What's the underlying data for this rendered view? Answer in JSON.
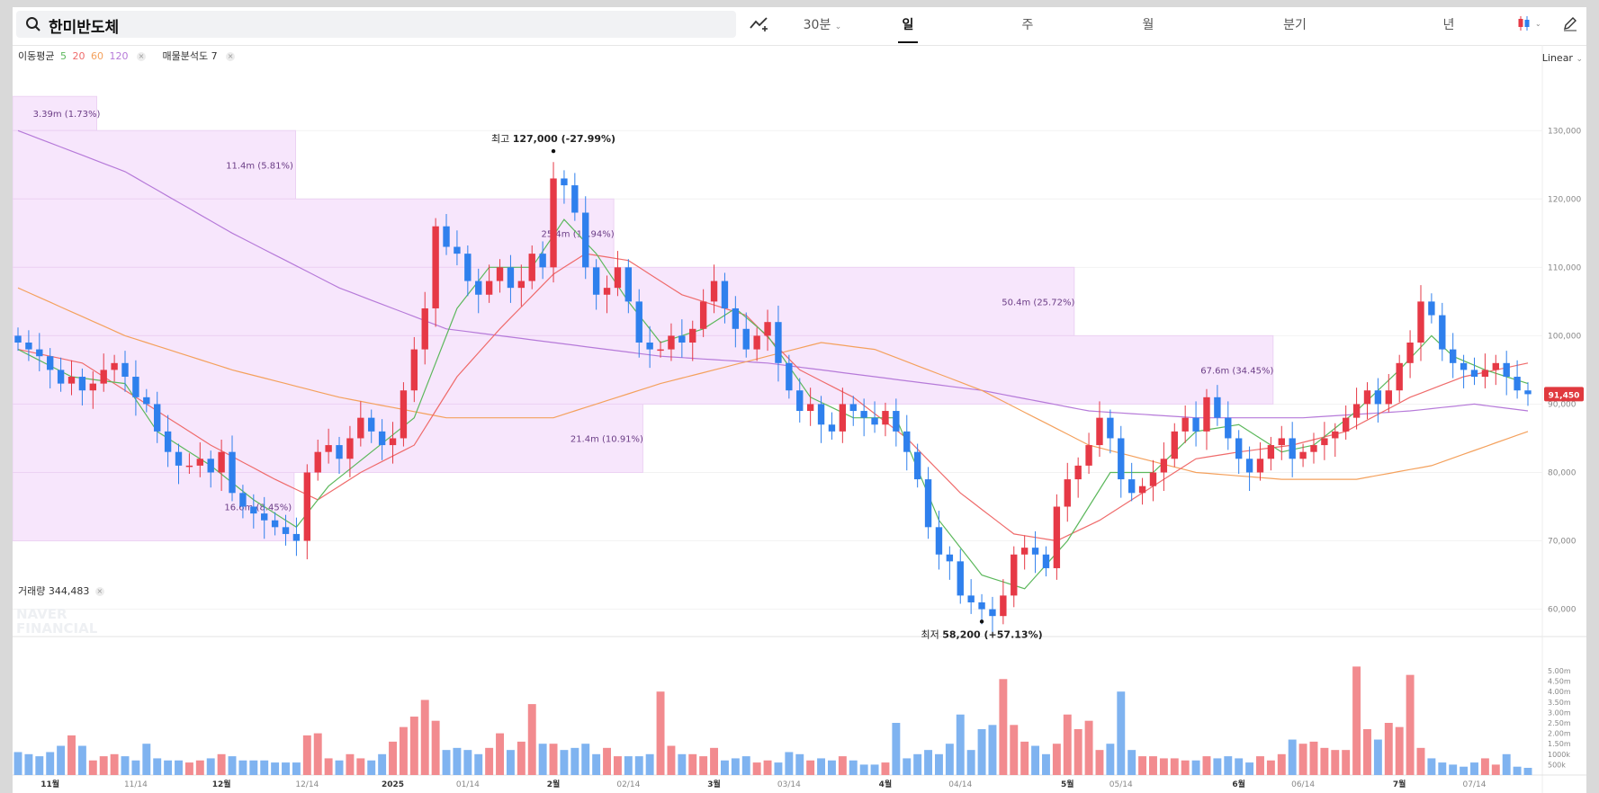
{
  "search": {
    "query": "한미반도체"
  },
  "toolbar": {
    "interval_30": "30분",
    "tabs": [
      "일",
      "주",
      "월",
      "분기",
      "년"
    ],
    "active_tab": "일"
  },
  "legend": {
    "ma_label": "이동평균",
    "ma_periods": [
      "5",
      "20",
      "60",
      "120"
    ],
    "vp_label": "매물분석도 7"
  },
  "scale_mode": "Linear",
  "volume_legend": "거래량 344,483",
  "watermark": [
    "NAVER",
    "FINANCIAL"
  ],
  "colors": {
    "up": "#e63946",
    "down": "#2f80ed",
    "ma5": "#5cb85c",
    "ma20": "#ef6b6b",
    "ma60": "#f4a15d",
    "ma120": "#b67ad9",
    "vp_fill": "#f7e6fc",
    "price_tag": "#e0393e"
  },
  "chart_data": {
    "type": "candlestick",
    "y_ticks": [
      "130,000",
      "120,000",
      "110,000",
      "100,000",
      "90,000",
      "80,000",
      "70,000",
      "60,000"
    ],
    "y_tick_values": [
      130000,
      120000,
      110000,
      100000,
      90000,
      80000,
      70000,
      60000
    ],
    "ylim": [
      56000,
      142000
    ],
    "x_ticks": [
      {
        "label": "11월",
        "i": 3
      },
      {
        "label": "11/14",
        "i": 11
      },
      {
        "label": "12월",
        "i": 19
      },
      {
        "label": "12/14",
        "i": 27
      },
      {
        "label": "2025",
        "i": 35
      },
      {
        "label": "01/14",
        "i": 42
      },
      {
        "label": "2월",
        "i": 50
      },
      {
        "label": "02/14",
        "i": 57
      },
      {
        "label": "3월",
        "i": 65
      },
      {
        "label": "03/14",
        "i": 72
      },
      {
        "label": "4월",
        "i": 81
      },
      {
        "label": "04/14",
        "i": 88
      },
      {
        "label": "5월",
        "i": 98
      },
      {
        "label": "05/14",
        "i": 103
      },
      {
        "label": "6월",
        "i": 114
      },
      {
        "label": "06/14",
        "i": 120
      },
      {
        "label": "7월",
        "i": 129
      },
      {
        "label": "07/14",
        "i": 136
      }
    ],
    "close": [
      99000,
      98000,
      97000,
      95000,
      93000,
      94000,
      92000,
      93000,
      95000,
      96000,
      94000,
      91000,
      90000,
      86000,
      83000,
      81000,
      81000,
      82000,
      80000,
      83000,
      77000,
      75000,
      74000,
      73000,
      72000,
      71000,
      70000,
      80000,
      83000,
      84000,
      82000,
      85000,
      88000,
      86000,
      84000,
      85000,
      92000,
      98000,
      104000,
      116000,
      113000,
      112000,
      108000,
      106000,
      108000,
      110000,
      107000,
      108000,
      112000,
      110000,
      123000,
      122000,
      118000,
      110000,
      106000,
      107000,
      110000,
      105000,
      99000,
      98000,
      98000,
      100000,
      99000,
      101000,
      105000,
      108000,
      104000,
      101000,
      98000,
      100000,
      102000,
      96000,
      92000,
      89000,
      90000,
      87000,
      86000,
      90000,
      89000,
      88000,
      87000,
      89000,
      86000,
      83000,
      79000,
      72000,
      68000,
      67000,
      62000,
      61000,
      60000,
      59000,
      62000,
      68000,
      69000,
      68000,
      66000,
      75000,
      79000,
      81000,
      84000,
      88000,
      85000,
      79000,
      77000,
      78000,
      80000,
      82000,
      86000,
      88000,
      86000,
      91000,
      88000,
      85000,
      82000,
      80000,
      82000,
      84000,
      85000,
      82000,
      83000,
      84000,
      85000,
      86000,
      88000,
      90000,
      92000,
      90000,
      92000,
      96000,
      99000,
      105000,
      103000,
      98000,
      96000,
      95000,
      94000,
      95000,
      96000,
      94000,
      92000,
      91450
    ],
    "n": 142,
    "ma5_anchor": [
      [
        0,
        98000
      ],
      [
        5,
        94000
      ],
      [
        10,
        93000
      ],
      [
        13,
        86000
      ],
      [
        18,
        81000
      ],
      [
        22,
        76000
      ],
      [
        26,
        72000
      ],
      [
        29,
        78000
      ],
      [
        33,
        83000
      ],
      [
        37,
        88000
      ],
      [
        41,
        104000
      ],
      [
        44,
        110000
      ],
      [
        48,
        110000
      ],
      [
        51,
        117000
      ],
      [
        54,
        112000
      ],
      [
        57,
        105000
      ],
      [
        60,
        99000
      ],
      [
        64,
        101000
      ],
      [
        67,
        104000
      ],
      [
        70,
        100000
      ],
      [
        74,
        91000
      ],
      [
        78,
        88000
      ],
      [
        82,
        88000
      ],
      [
        86,
        73000
      ],
      [
        90,
        65000
      ],
      [
        94,
        63000
      ],
      [
        98,
        70000
      ],
      [
        102,
        80000
      ],
      [
        106,
        80000
      ],
      [
        110,
        86000
      ],
      [
        114,
        87000
      ],
      [
        118,
        83000
      ],
      [
        121,
        84000
      ],
      [
        125,
        89000
      ],
      [
        129,
        95000
      ],
      [
        132,
        100000
      ],
      [
        134,
        97000
      ],
      [
        137,
        95000
      ],
      [
        141,
        93000
      ]
    ],
    "ma20_anchor": [
      [
        0,
        98000
      ],
      [
        6,
        96000
      ],
      [
        12,
        90000
      ],
      [
        18,
        84000
      ],
      [
        24,
        79000
      ],
      [
        28,
        76000
      ],
      [
        32,
        80000
      ],
      [
        37,
        84000
      ],
      [
        41,
        94000
      ],
      [
        45,
        101000
      ],
      [
        50,
        109000
      ],
      [
        53,
        112000
      ],
      [
        57,
        111000
      ],
      [
        62,
        106000
      ],
      [
        68,
        103000
      ],
      [
        73,
        95000
      ],
      [
        78,
        91000
      ],
      [
        83,
        85000
      ],
      [
        88,
        77000
      ],
      [
        93,
        71000
      ],
      [
        97,
        70000
      ],
      [
        101,
        73000
      ],
      [
        106,
        78000
      ],
      [
        110,
        82000
      ],
      [
        114,
        83000
      ],
      [
        119,
        84000
      ],
      [
        124,
        86000
      ],
      [
        130,
        91000
      ],
      [
        135,
        94000
      ],
      [
        141,
        96000
      ]
    ],
    "ma60_anchor": [
      [
        0,
        107000
      ],
      [
        10,
        100000
      ],
      [
        20,
        95000
      ],
      [
        30,
        91000
      ],
      [
        40,
        88000
      ],
      [
        50,
        88000
      ],
      [
        60,
        93000
      ],
      [
        70,
        97000
      ],
      [
        75,
        99000
      ],
      [
        80,
        98000
      ],
      [
        90,
        92000
      ],
      [
        100,
        84000
      ],
      [
        110,
        80000
      ],
      [
        118,
        79000
      ],
      [
        125,
        79000
      ],
      [
        132,
        81000
      ],
      [
        141,
        86000
      ]
    ],
    "ma120_anchor": [
      [
        0,
        130000
      ],
      [
        10,
        124000
      ],
      [
        20,
        115000
      ],
      [
        30,
        107000
      ],
      [
        40,
        101000
      ],
      [
        50,
        99000
      ],
      [
        60,
        97000
      ],
      [
        70,
        96000
      ],
      [
        80,
        94000
      ],
      [
        90,
        92000
      ],
      [
        100,
        89000
      ],
      [
        110,
        88000
      ],
      [
        120,
        88000
      ],
      [
        130,
        89000
      ],
      [
        136,
        90000
      ],
      [
        141,
        89000
      ]
    ],
    "volume_profile": [
      {
        "lo": 130000,
        "hi": 135000,
        "label": "3.39m (1.73%)",
        "width": 0.055
      },
      {
        "lo": 120000,
        "hi": 130000,
        "label": "11.4m (5.81%)",
        "width": 0.185
      },
      {
        "lo": 110000,
        "hi": 120000,
        "label": "25.4m (12.94%)",
        "width": 0.393
      },
      {
        "lo": 100000,
        "hi": 110000,
        "label": "50.4m (25.72%)",
        "width": 0.694
      },
      {
        "lo": 90000,
        "hi": 100000,
        "label": "67.6m (34.45%)",
        "width": 0.824
      },
      {
        "lo": 80000,
        "hi": 90000,
        "label": "21.4m (10.91%)",
        "width": 0.412
      },
      {
        "lo": 70000,
        "hi": 80000,
        "label": "16.6m (8.45%)",
        "width": 0.184
      }
    ],
    "high_annotation": {
      "prefix": "최고",
      "value": "127,000 (-27.99%)",
      "i": 50,
      "price": 127000
    },
    "low_annotation": {
      "prefix": "최저",
      "value": "58,200 (+57.13%)",
      "i": 90,
      "price": 58200
    },
    "last_price_tag": "91,450",
    "volume_ticks": [
      "5.00m",
      "4.50m",
      "4.00m",
      "3.50m",
      "3.00m",
      "2.50m",
      "2.00m",
      "1.50m",
      "1000k",
      "500k"
    ],
    "volume_tick_values": [
      5000000,
      4500000,
      4000000,
      3500000,
      3000000,
      2500000,
      2000000,
      1500000,
      1000000,
      500000
    ],
    "volume_max": 5000000,
    "volume": [
      1100000,
      1000000,
      900000,
      1100000,
      1400000,
      1900000,
      1400000,
      700000,
      900000,
      1000000,
      900000,
      700000,
      1500000,
      800000,
      700000,
      700000,
      600000,
      700000,
      800000,
      1000000,
      900000,
      700000,
      700000,
      700000,
      600000,
      600000,
      600000,
      1900000,
      2000000,
      800000,
      700000,
      1000000,
      800000,
      700000,
      1000000,
      1600000,
      2300000,
      2800000,
      3600000,
      2600000,
      1200000,
      1300000,
      1200000,
      1000000,
      1300000,
      2000000,
      1200000,
      1600000,
      3400000,
      1500000,
      1500000,
      1200000,
      1300000,
      1500000,
      1000000,
      1300000,
      900000,
      900000,
      900000,
      1000000,
      4000000,
      1400000,
      1000000,
      1000000,
      900000,
      1300000,
      700000,
      800000,
      900000,
      600000,
      700000,
      600000,
      1100000,
      1000000,
      700000,
      800000,
      700000,
      900000,
      700000,
      500000,
      500000,
      600000,
      2500000,
      800000,
      1000000,
      1200000,
      1000000,
      1500000,
      2900000,
      1200000,
      2200000,
      2400000,
      4600000,
      2400000,
      1600000,
      1400000,
      1000000,
      1500000,
      2900000,
      2200000,
      2600000,
      1200000,
      1500000,
      4000000,
      1200000,
      900000,
      900000,
      800000,
      800000,
      700000,
      700000,
      900000,
      800000,
      900000,
      800000,
      600000,
      900000,
      700000,
      1000000,
      1700000,
      1500000,
      1600000,
      1300000,
      1200000,
      1200000,
      5200000,
      2200000,
      1700000,
      2500000,
      2300000,
      4800000,
      1300000,
      800000,
      600000,
      500000,
      400000,
      600000,
      800000,
      500000,
      1000000,
      400000,
      344483
    ],
    "candles_note": "open values derived from previous close"
  }
}
